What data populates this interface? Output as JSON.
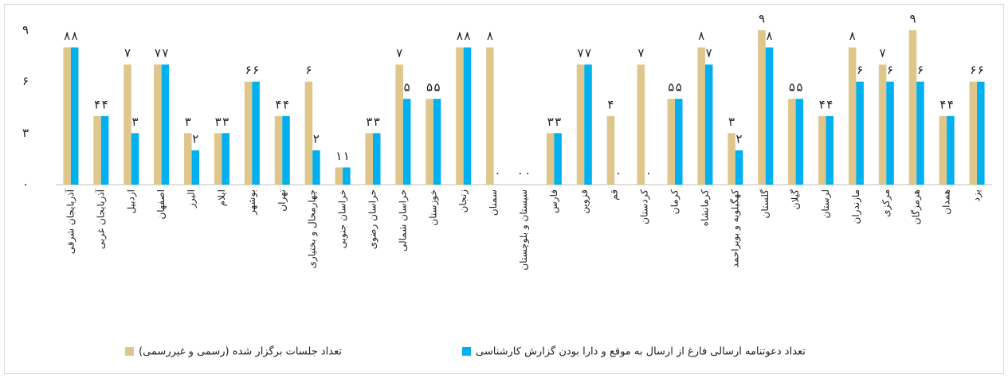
{
  "chart_data": {
    "type": "bar",
    "categories": [
      "آذربایجان شرقی",
      "آذربایجان غربی",
      "اردبیل",
      "اصفهان",
      "البرز",
      "ایلام",
      "بوشهر",
      "تهران",
      "چهارمحال و بختیاری",
      "خراسان جنوبی",
      "خراسان رضوی",
      "خراسان شمالی",
      "خوزستان",
      "زنجان",
      "سمنان",
      "سیستان و بلوچستان",
      "فارس",
      "قزوین",
      "قم",
      "کردستان",
      "کرمان",
      "کرمانشاه",
      "کهگیلویه و بویراحمد",
      "گلستان",
      "گیلان",
      "لرستان",
      "مازندران",
      "مرکزی",
      "هرمزگان",
      "همدان",
      "یزد"
    ],
    "series": [
      {
        "name": "تعداد جلسات برگزار شده (رسمی و غیررسمی)",
        "color": "#dfc68a",
        "values": [
          8,
          4,
          7,
          7,
          3,
          3,
          6,
          4,
          6,
          1,
          3,
          7,
          5,
          8,
          8,
          0,
          3,
          7,
          4,
          7,
          5,
          8,
          3,
          9,
          5,
          4,
          8,
          7,
          9,
          4,
          6
        ],
        "value_labels": [
          "۸",
          "۴",
          "۷",
          "۷",
          "۳",
          "۳",
          "۶",
          "۴",
          "۶",
          "۱",
          "۳",
          "۷",
          "۵",
          "۸",
          "۸",
          "۰",
          "۳",
          "۷",
          "۴",
          "۷",
          "۵",
          "۸",
          "۳",
          "۹",
          "۵",
          "۴",
          "۸",
          "۷",
          "۹",
          "۴",
          "۶"
        ]
      },
      {
        "name": "تعداد دعوتنامه ارسالی فارغ از ارسال به موقع و دارا بودن گزارش کارشناسی",
        "color": "#00b0f0",
        "values": [
          8,
          4,
          3,
          7,
          2,
          3,
          6,
          4,
          2,
          1,
          3,
          5,
          5,
          8,
          0,
          0,
          3,
          7,
          0,
          0,
          5,
          7,
          2,
          8,
          5,
          4,
          6,
          6,
          6,
          4,
          6
        ],
        "value_labels": [
          "۸",
          "۴",
          "۳",
          "۷",
          "۲",
          "۳",
          "۶",
          "۴",
          "۲",
          "۱",
          "۳",
          "۵",
          "۵",
          "۸",
          "۰",
          "۰",
          "۳",
          "۷",
          "۰",
          "۰",
          "۵",
          "۷",
          "۲",
          "۸",
          "۵",
          "۴",
          "۶",
          "۶",
          "۶",
          "۴",
          "۶"
        ]
      }
    ],
    "ylim": [
      0,
      9
    ],
    "yticks": [
      {
        "value": 0,
        "label": "۰"
      },
      {
        "value": 3,
        "label": "۳"
      },
      {
        "value": 6,
        "label": "۶"
      },
      {
        "value": 9,
        "label": "۹"
      }
    ]
  }
}
